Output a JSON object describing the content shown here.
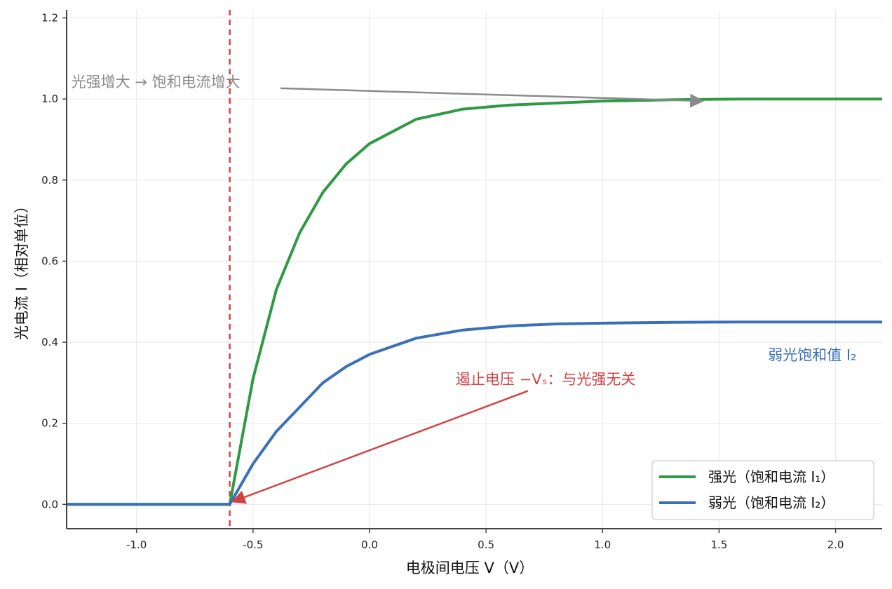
{
  "chart_data": {
    "type": "line",
    "xlabel": "电极间电压 V（V）",
    "ylabel": "光电流 I（相对单位）",
    "xlim": [
      -1.3,
      2.2
    ],
    "ylim": [
      -0.06,
      1.22
    ],
    "x_ticks": [
      -1.0,
      -0.5,
      0.0,
      0.5,
      1.0,
      1.5,
      2.0
    ],
    "x_tick_labels": [
      "-1.0",
      "-0.5",
      "0.0",
      "0.5",
      "1.0",
      "1.5",
      "2.0"
    ],
    "y_ticks": [
      0.0,
      0.2,
      0.4,
      0.6,
      0.8,
      1.0,
      1.2
    ],
    "y_tick_labels": [
      "0.0",
      "0.2",
      "0.4",
      "0.6",
      "0.8",
      "1.0",
      "1.2"
    ],
    "grid": true,
    "stopping_voltage": -0.6,
    "series": [
      {
        "name": "强光（饱和电流 I₁）",
        "color": "#2e9a44",
        "saturation": 1.0,
        "x": [
          -1.3,
          -0.6,
          -0.5,
          -0.4,
          -0.3,
          -0.2,
          -0.1,
          0.0,
          0.2,
          0.4,
          0.6,
          0.8,
          1.0,
          1.3,
          1.6,
          2.2
        ],
        "y": [
          0.0,
          0.0,
          0.31,
          0.53,
          0.67,
          0.77,
          0.84,
          0.89,
          0.95,
          0.975,
          0.985,
          0.99,
          0.995,
          0.998,
          1.0,
          1.0
        ]
      },
      {
        "name": "弱光（饱和电流 I₂）",
        "color": "#3a70b8",
        "saturation": 0.45,
        "x": [
          -1.3,
          -0.6,
          -0.5,
          -0.4,
          -0.3,
          -0.2,
          -0.1,
          0.0,
          0.2,
          0.4,
          0.6,
          0.8,
          1.0,
          1.3,
          1.6,
          2.2
        ],
        "y": [
          0.0,
          0.0,
          0.1,
          0.18,
          0.24,
          0.3,
          0.34,
          0.37,
          0.41,
          0.43,
          0.44,
          0.445,
          0.447,
          0.449,
          0.45,
          0.45
        ]
      }
    ],
    "annotations": [
      {
        "text": "光强增大 → 饱和电流增大",
        "color": "#8a8a8a",
        "x": -1.28,
        "y": 1.03,
        "arrow_to": [
          1.43,
          0.995
        ]
      },
      {
        "text": "遏止电压 −Vₛ：与光强无关",
        "color": "#d04444",
        "x": 0.37,
        "y": 0.31,
        "arrow_from": [
          0.68,
          0.28
        ],
        "arrow_to": [
          -0.6,
          0.005
        ]
      },
      {
        "text": "弱光饱和值 I₂",
        "color": "#3a70b8",
        "x": 1.71,
        "y": 0.37
      }
    ],
    "legend_position": "bottom-right"
  }
}
